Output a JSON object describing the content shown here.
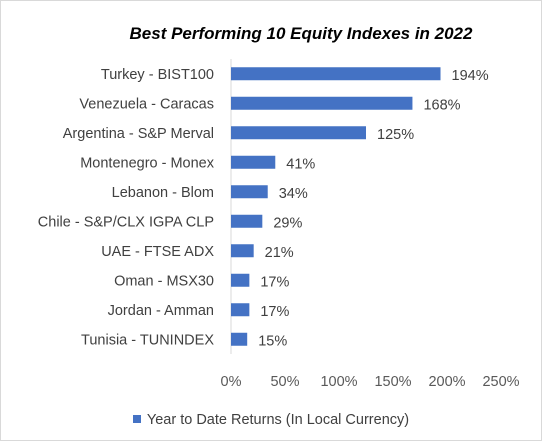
{
  "chart_data": {
    "type": "bar",
    "orientation": "horizontal",
    "title": "Best Performing 10 Equity Indexes in 2022",
    "categories": [
      "Turkey -  BIST100",
      "Venezuela -  Caracas",
      "Argentina -  S&P Merval",
      "Montenegro -  Monex",
      "Lebanon -  Blom",
      "Chile -  S&P/CLX IGPA CLP",
      "UAE -  FTSE ADX",
      "Oman -  MSX30",
      "Jordan -  Amman",
      "Tunisia -  TUNINDEX"
    ],
    "series": [
      {
        "name": "Year to Date Returns (In Local Currency)",
        "values": [
          194,
          168,
          125,
          41,
          34,
          29,
          21,
          17,
          17,
          15
        ],
        "labels": [
          "194%",
          "168%",
          "125%",
          "41%",
          "34%",
          "29%",
          "21%",
          "17%",
          "17%",
          "15%"
        ],
        "color": "#4472c4"
      }
    ],
    "xlim": [
      0,
      250
    ],
    "xticks": [
      "0%",
      "50%",
      "100%",
      "150%",
      "200%",
      "250%"
    ],
    "xtick_values": [
      0,
      50,
      100,
      150,
      200,
      250
    ],
    "grid": false,
    "legend_position": "bottom"
  }
}
